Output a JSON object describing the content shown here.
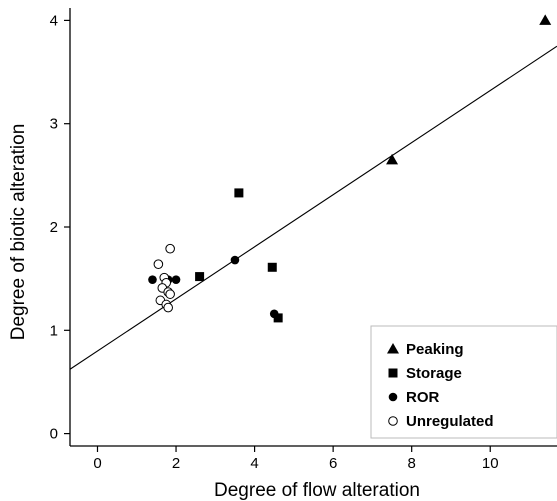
{
  "chart_data": {
    "type": "scatter",
    "xlabel": "Degree of flow alteration",
    "ylabel": "Degree of biotic alteration",
    "xlim": [
      -0.7,
      11.7
    ],
    "ylim": [
      -0.12,
      4.12
    ],
    "x_ticks": [
      0,
      2,
      4,
      6,
      8,
      10
    ],
    "y_ticks": [
      0,
      1,
      2,
      3,
      4
    ],
    "grid": false,
    "legend_position": "bottom-right",
    "series": [
      {
        "name": "Peaking",
        "marker": "triangle",
        "filled": true,
        "points": [
          [
            7.5,
            2.65
          ],
          [
            11.4,
            4.0
          ]
        ]
      },
      {
        "name": "Storage",
        "marker": "square",
        "filled": true,
        "points": [
          [
            2.6,
            1.52
          ],
          [
            3.6,
            2.33
          ],
          [
            4.45,
            1.61
          ],
          [
            4.6,
            1.12
          ]
        ]
      },
      {
        "name": "ROR",
        "marker": "circle",
        "filled": true,
        "points": [
          [
            1.4,
            1.49
          ],
          [
            1.8,
            1.49
          ],
          [
            2.0,
            1.49
          ],
          [
            3.5,
            1.68
          ],
          [
            4.5,
            1.16
          ]
        ]
      },
      {
        "name": "Unregulated",
        "marker": "circle",
        "filled": false,
        "points": [
          [
            1.55,
            1.64
          ],
          [
            1.85,
            1.79
          ],
          [
            1.7,
            1.51
          ],
          [
            1.75,
            1.46
          ],
          [
            1.65,
            1.41
          ],
          [
            1.8,
            1.37
          ],
          [
            1.85,
            1.35
          ],
          [
            1.6,
            1.29
          ],
          [
            1.75,
            1.25
          ],
          [
            1.8,
            1.22
          ]
        ]
      }
    ],
    "trend_line": {
      "x": [
        -0.7,
        11.7
      ],
      "y": [
        0.623,
        3.75
      ]
    }
  }
}
